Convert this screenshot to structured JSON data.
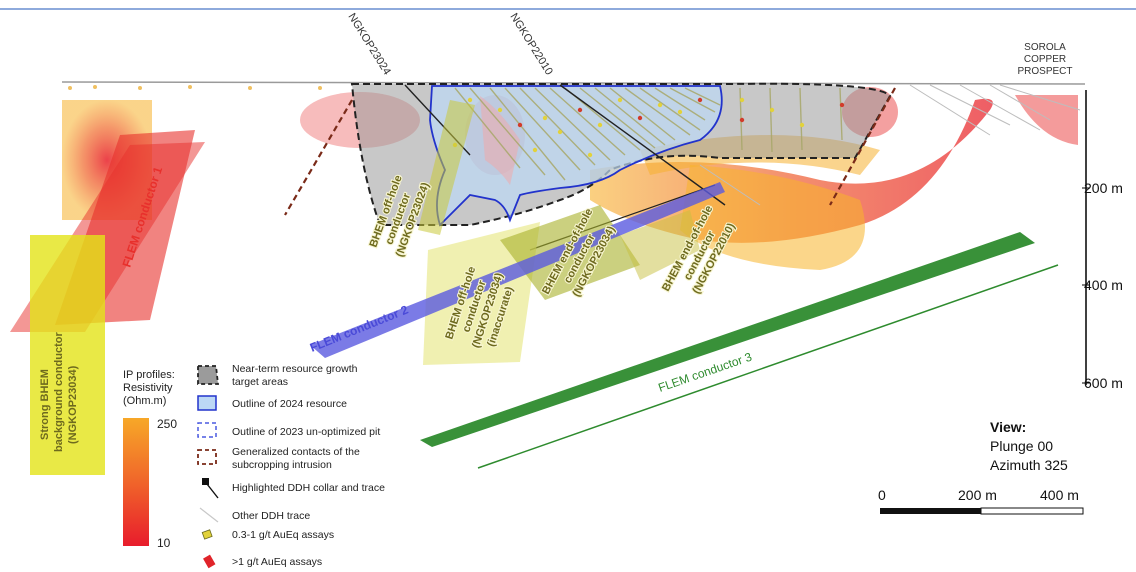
{
  "collar_labels": {
    "hole_1": "NGKOP23024",
    "hole_2": "NGKOP22010"
  },
  "prospect_label": [
    "SOROLA",
    "COPPER",
    "PROSPECT"
  ],
  "depth_scale": [
    {
      "label": "200 m"
    },
    {
      "label": "400 m"
    },
    {
      "label": "600 m"
    }
  ],
  "conductor_labels": {
    "flem_1": "FLEM conductor 1",
    "flem_2": "FLEM conductor 2",
    "flem_3": "FLEM conductor 3",
    "strong_bhem": [
      "Strong BHEM",
      "background conductor",
      "(NGKOP23034)"
    ],
    "bhem_offhole_23024": [
      "BHEM off-hole",
      "conductor",
      "(NGKOP23024)"
    ],
    "bhem_offhole_23034": [
      "BHEM off-hole",
      "conductor",
      "(NGKOP23034)",
      "(inaccurate)"
    ],
    "bhem_endhole_23034": [
      "BHEM end-of-hole",
      "conductor",
      "(NGKOP23034)"
    ],
    "bhem_endhole_22010": [
      "BHEM end-of-hole",
      "conductor",
      "(NGKOP22010)"
    ]
  },
  "ip_legend": {
    "title_lines": [
      "IP profiles:",
      "Resistivity",
      "(Ohm.m)"
    ],
    "max_label": "250",
    "min_label": "10"
  },
  "legend_items": [
    {
      "lines": [
        "Near-term resource growth",
        "target areas"
      ],
      "icon": "grey-dashed-area"
    },
    {
      "lines": [
        "Outline of 2024 resource"
      ],
      "icon": "blue-outline"
    },
    {
      "lines": [
        "Outline of 2023 un-optimized pit"
      ],
      "icon": "blue-dashed-outline"
    },
    {
      "lines": [
        "Generalized contacts of the",
        "subcropping intrusion"
      ],
      "icon": "brown-dashed-outline"
    },
    {
      "lines": [
        "Highlighted DDH collar and trace"
      ],
      "icon": "black-collar-trace"
    },
    {
      "lines": [
        "Other DDH trace"
      ],
      "icon": "grey-trace"
    },
    {
      "lines": [
        "0.3-1 g/t AuEq assays"
      ],
      "icon": "yellow-assay"
    },
    {
      "lines": [
        ">1 g/t AuEq assays"
      ],
      "icon": "red-assay"
    }
  ],
  "view": {
    "title": "View:",
    "plunge": "Plunge 00",
    "azimuth": "Azimuth 325"
  },
  "scale_bar": {
    "labels": [
      "0",
      "200 m",
      "400 m"
    ]
  },
  "colors": {
    "flem_conductor_1": "#e8302c",
    "flem_conductor_2": "#5a5ae0",
    "flem_conductor_3": "#2e8b2e",
    "bhem_conductor": "#e6e62a",
    "resource_outline": "#2233cc",
    "intrusion_contact": "#7a2a18",
    "resistivity_high": "#f5a623",
    "resistivity_low": "#e8202a"
  }
}
